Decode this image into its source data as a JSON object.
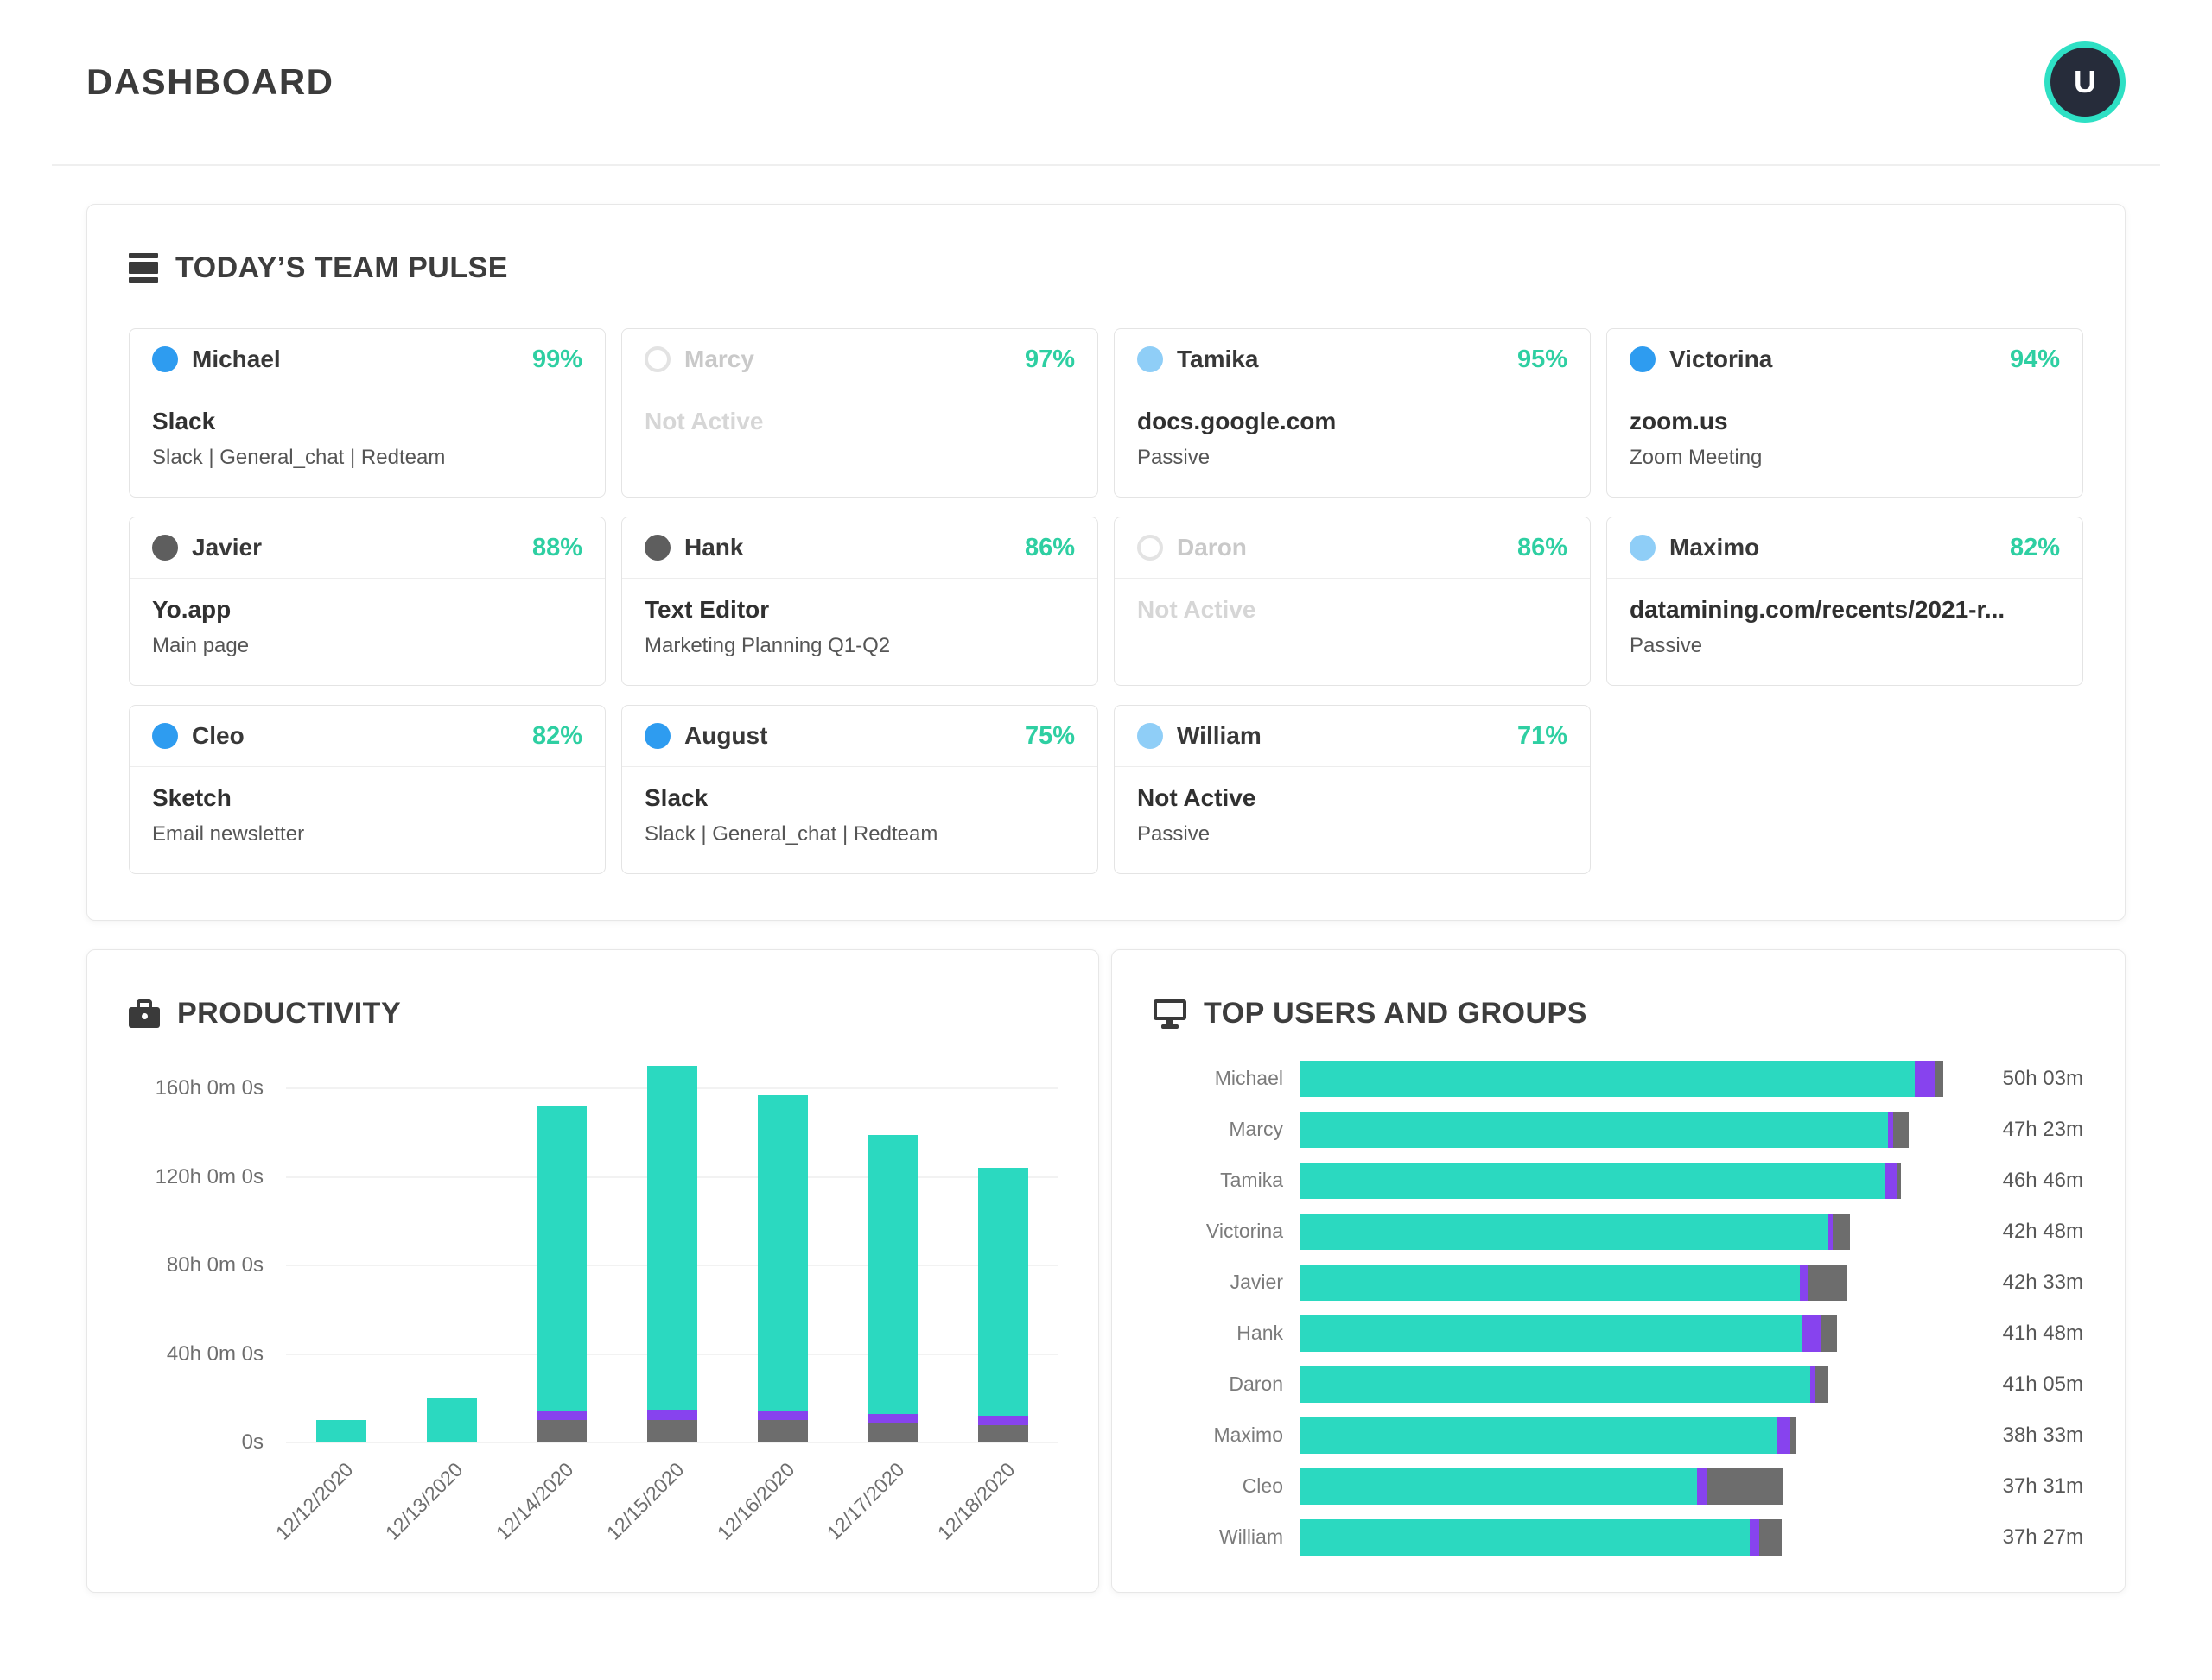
{
  "header": {
    "title": "DASHBOARD",
    "avatar_initial": "U"
  },
  "theme": {
    "teal": "#2bd9c0",
    "purple": "#8743ee",
    "gray": "#6d6d6d",
    "percent_green": "#2ecfa2",
    "blue_dot": "#2e9cf0",
    "lightblue_dot": "#8fcef7",
    "gray_dot": "#5e5e5e",
    "avatar_ring": "#2ee0c4",
    "avatar_bg": "#262c3a"
  },
  "team_pulse": {
    "title": "TODAY’S TEAM PULSE",
    "cards": [
      {
        "name": "Michael",
        "pct": "99%",
        "dot": "blue",
        "app": "Slack",
        "detail": "Slack | General_chat | Redteam"
      },
      {
        "name": "Marcy",
        "pct": "97%",
        "dot": "hollow",
        "app": "Not Active",
        "detail": "",
        "inactive": true
      },
      {
        "name": "Tamika",
        "pct": "95%",
        "dot": "lightblue",
        "app": "docs.google.com",
        "detail": "Passive"
      },
      {
        "name": "Victorina",
        "pct": "94%",
        "dot": "blue",
        "app": "zoom.us",
        "detail": "Zoom Meeting"
      },
      {
        "name": "Javier",
        "pct": "88%",
        "dot": "gray",
        "app": "Yo.app",
        "detail": "Main page"
      },
      {
        "name": "Hank",
        "pct": "86%",
        "dot": "gray",
        "app": "Text Editor",
        "detail": "Marketing Planning Q1-Q2"
      },
      {
        "name": "Daron",
        "pct": "86%",
        "dot": "hollow",
        "app": "Not Active",
        "detail": "",
        "inactive": true
      },
      {
        "name": "Maximo",
        "pct": "82%",
        "dot": "lightblue",
        "app": "datamining.com/recents/2021-r...",
        "detail": "Passive"
      },
      {
        "name": "Cleo",
        "pct": "82%",
        "dot": "blue",
        "app": "Sketch",
        "detail": "Email newsletter"
      },
      {
        "name": "August",
        "pct": "75%",
        "dot": "blue",
        "app": "Slack",
        "detail": "Slack | General_chat | Redteam"
      },
      {
        "name": "William",
        "pct": "71%",
        "dot": "lightblue",
        "app": "Not Active",
        "detail": "Passive"
      }
    ]
  },
  "productivity": {
    "title": "PRODUCTIVITY"
  },
  "top_users": {
    "title": "TOP USERS AND GROUPS"
  },
  "chart_data": [
    {
      "type": "bar",
      "stacked": true,
      "title": "PRODUCTIVITY",
      "categories": [
        "12/12/2020",
        "12/13/2020",
        "12/14/2020",
        "12/15/2020",
        "12/16/2020",
        "12/17/2020",
        "12/18/2020"
      ],
      "ytick_labels": [
        "0s",
        "40h 0m 0s",
        "80h 0m 0s",
        "120h 0m 0s",
        "160h 0m 0s"
      ],
      "ytick_hours": [
        0,
        40,
        80,
        120,
        160
      ],
      "ylim_hours": [
        0,
        175
      ],
      "grid": "horizontal",
      "legend": "none",
      "series": [
        {
          "name": "bottom-gray",
          "color": "#6d6d6d",
          "values_hours": [
            0,
            0,
            10,
            10,
            10,
            9,
            8
          ]
        },
        {
          "name": "middle-purple",
          "color": "#8743ee",
          "values_hours": [
            0,
            0,
            4,
            5,
            4,
            4,
            4
          ]
        },
        {
          "name": "top-teal",
          "color": "#2bd9c0",
          "values_hours": [
            10,
            20,
            138,
            155,
            143,
            126,
            112
          ]
        }
      ],
      "totals_hours": [
        10,
        20,
        152,
        170,
        157,
        139,
        124
      ]
    },
    {
      "type": "bar",
      "orientation": "horizontal",
      "title": "TOP USERS AND GROUPS",
      "max_hours": 50.05,
      "legend": "none",
      "rows": [
        {
          "name": "Michael",
          "time": "50h 03m",
          "hours": 50.05,
          "segments_pct": {
            "teal": 95.5,
            "purple": 3.2,
            "gray": 1.3
          }
        },
        {
          "name": "Marcy",
          "time": "47h 23m",
          "hours": 47.38,
          "segments_pct": {
            "teal": 96.6,
            "purple": 0.9,
            "gray": 2.5
          }
        },
        {
          "name": "Tamika",
          "time": "46h 46m",
          "hours": 46.77,
          "segments_pct": {
            "teal": 97.3,
            "purple": 2.0,
            "gray": 0.7
          }
        },
        {
          "name": "Victorina",
          "time": "42h 48m",
          "hours": 42.8,
          "segments_pct": {
            "teal": 96.1,
            "purple": 0.8,
            "gray": 3.1
          }
        },
        {
          "name": "Javier",
          "time": "42h 33m",
          "hours": 42.55,
          "segments_pct": {
            "teal": 91.3,
            "purple": 1.6,
            "gray": 7.1
          }
        },
        {
          "name": "Hank",
          "time": "41h 48m",
          "hours": 41.8,
          "segments_pct": {
            "teal": 93.6,
            "purple": 3.5,
            "gray": 2.9
          }
        },
        {
          "name": "Daron",
          "time": "41h 05m",
          "hours": 41.08,
          "segments_pct": {
            "teal": 96.5,
            "purple": 1.0,
            "gray": 2.5
          }
        },
        {
          "name": "Maximo",
          "time": "38h 33m",
          "hours": 38.55,
          "segments_pct": {
            "teal": 96.4,
            "purple": 2.6,
            "gray": 1.0
          }
        },
        {
          "name": "Cleo",
          "time": "37h 31m",
          "hours": 37.52,
          "segments_pct": {
            "teal": 82.2,
            "purple": 2.0,
            "gray": 15.8
          }
        },
        {
          "name": "William",
          "time": "37h 27m",
          "hours": 37.45,
          "segments_pct": {
            "teal": 93.3,
            "purple": 2.0,
            "gray": 4.7
          }
        }
      ]
    }
  ]
}
